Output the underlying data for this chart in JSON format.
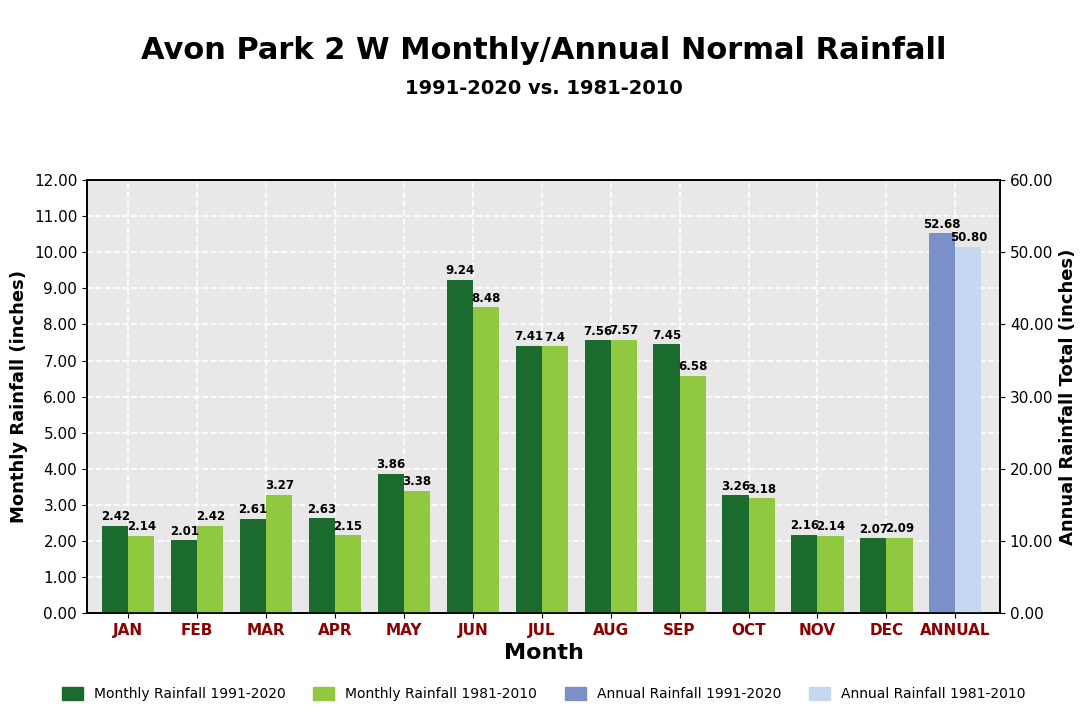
{
  "title": "Avon Park 2 W Monthly/Annual Normal Rainfall",
  "subtitle": "1991-2020 vs. 1981-2010",
  "xlabel": "Month",
  "ylabel_left": "Monthly Rainfall (inches)",
  "ylabel_right": "Annual Rainfall Total (inches)",
  "months": [
    "JAN",
    "FEB",
    "MAR",
    "APR",
    "MAY",
    "JUN",
    "JUL",
    "AUG",
    "SEP",
    "OCT",
    "NOV",
    "DEC",
    "ANNUAL"
  ],
  "monthly_1991_2020": [
    2.42,
    2.01,
    2.61,
    2.63,
    3.86,
    9.24,
    7.41,
    7.56,
    7.45,
    3.26,
    2.16,
    2.07
  ],
  "monthly_1981_2010": [
    2.14,
    2.42,
    3.27,
    2.15,
    3.38,
    8.48,
    7.4,
    7.57,
    6.58,
    3.18,
    2.14,
    2.09
  ],
  "annual_1991_2020": 52.68,
  "annual_1981_2010": 50.8,
  "color_monthly_new": "#1b6b2e",
  "color_monthly_old": "#90c93f",
  "color_annual_new": "#7b8fc8",
  "color_annual_old": "#c5d8f0",
  "ylim_left": [
    0,
    12.0
  ],
  "ylim_right": [
    0,
    60.0
  ],
  "yticks_left": [
    0,
    1,
    2,
    3,
    4,
    5,
    6,
    7,
    8,
    9,
    10,
    11,
    12
  ],
  "yticks_right": [
    0,
    10,
    20,
    30,
    40,
    50,
    60
  ],
  "legend_labels": [
    "Monthly Rainfall 1991-2020",
    "Monthly Rainfall 1981-2010",
    "Annual Rainfall 1991-2020",
    "Annual Rainfall 1981-2010"
  ],
  "bar_width": 0.38,
  "background_color": "#e8e8e8",
  "grid_color": "#ffffff",
  "title_fontsize": 22,
  "subtitle_fontsize": 14,
  "label_fontsize": 13,
  "tick_fontsize": 11,
  "annotation_fontsize": 8.5
}
